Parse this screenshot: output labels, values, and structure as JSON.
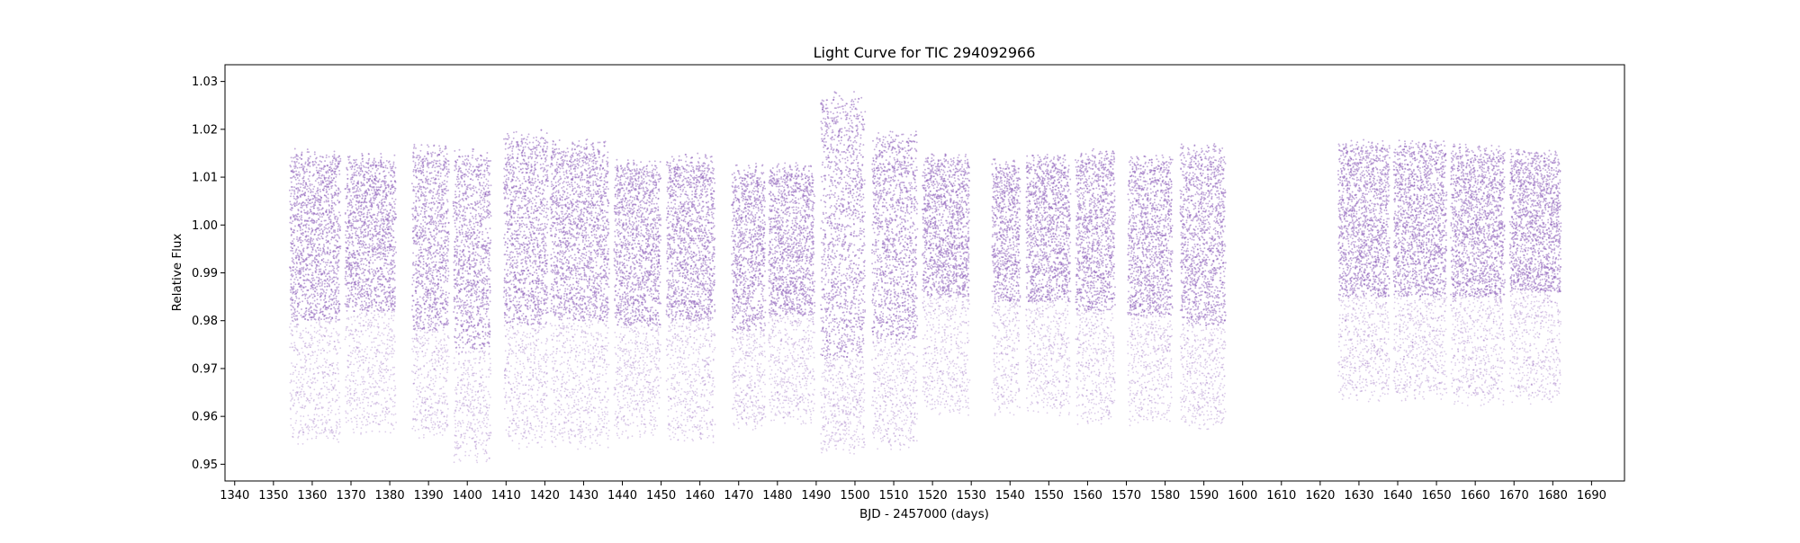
{
  "chart_data": {
    "type": "scatter",
    "title": "Light Curve for TIC 294092966",
    "xlabel": "BJD - 2457000 (days)",
    "ylabel": "Relative Flux",
    "xlim": [
      1337.5,
      1698.5
    ],
    "ylim": [
      0.9465,
      1.0335
    ],
    "xticks": [
      1340,
      1350,
      1360,
      1370,
      1380,
      1390,
      1400,
      1410,
      1420,
      1430,
      1440,
      1450,
      1460,
      1470,
      1480,
      1490,
      1500,
      1510,
      1520,
      1530,
      1540,
      1550,
      1560,
      1570,
      1580,
      1590,
      1600,
      1610,
      1620,
      1630,
      1640,
      1650,
      1660,
      1670,
      1680,
      1690
    ],
    "yticks": [
      0.95,
      0.96,
      0.97,
      0.98,
      0.99,
      1.0,
      1.01,
      1.02,
      1.03
    ],
    "ytick_labels": [
      "0.95",
      "0.96",
      "0.97",
      "0.98",
      "0.99",
      "1.00",
      "1.01",
      "1.02",
      "1.03"
    ],
    "grid": false,
    "marker_color": "#9467bd",
    "segments": [
      {
        "x_start": 1354.3,
        "x_end": 1367.2,
        "flux_min": 0.954,
        "flux_max": 1.016,
        "dense_low": 0.98
      },
      {
        "x_start": 1368.6,
        "x_end": 1381.5,
        "flux_min": 0.956,
        "flux_max": 1.015,
        "dense_low": 0.982
      },
      {
        "x_start": 1385.9,
        "x_end": 1395.2,
        "flux_min": 0.955,
        "flux_max": 1.017,
        "dense_low": 0.978
      },
      {
        "x_start": 1396.5,
        "x_end": 1406.0,
        "flux_min": 0.95,
        "flux_max": 1.016,
        "dense_low": 0.974
      },
      {
        "x_start": 1409.5,
        "x_end": 1420.8,
        "flux_min": 0.953,
        "flux_max": 1.02,
        "dense_low": 0.979
      },
      {
        "x_start": 1421.5,
        "x_end": 1436.5,
        "flux_min": 0.953,
        "flux_max": 1.018,
        "dense_low": 0.98
      },
      {
        "x_start": 1438.0,
        "x_end": 1449.8,
        "flux_min": 0.955,
        "flux_max": 1.014,
        "dense_low": 0.979
      },
      {
        "x_start": 1451.5,
        "x_end": 1463.8,
        "flux_min": 0.954,
        "flux_max": 1.015,
        "dense_low": 0.98
      },
      {
        "x_start": 1468.3,
        "x_end": 1476.8,
        "flux_min": 0.957,
        "flux_max": 1.013,
        "dense_low": 0.978
      },
      {
        "x_start": 1477.8,
        "x_end": 1489.5,
        "flux_min": 0.958,
        "flux_max": 1.013,
        "dense_low": 0.981
      },
      {
        "x_start": 1491.3,
        "x_end": 1502.5,
        "flux_min": 0.952,
        "flux_max": 1.028,
        "dense_low": 0.972
      },
      {
        "x_start": 1504.5,
        "x_end": 1516.0,
        "flux_min": 0.953,
        "flux_max": 1.02,
        "dense_low": 0.976
      },
      {
        "x_start": 1517.5,
        "x_end": 1529.5,
        "flux_min": 0.96,
        "flux_max": 1.015,
        "dense_low": 0.985
      },
      {
        "x_start": 1535.5,
        "x_end": 1542.5,
        "flux_min": 0.96,
        "flux_max": 1.014,
        "dense_low": 0.984
      },
      {
        "x_start": 1544.2,
        "x_end": 1555.5,
        "flux_min": 0.96,
        "flux_max": 1.015,
        "dense_low": 0.984
      },
      {
        "x_start": 1557.0,
        "x_end": 1567.0,
        "flux_min": 0.958,
        "flux_max": 1.016,
        "dense_low": 0.982
      },
      {
        "x_start": 1570.5,
        "x_end": 1581.8,
        "flux_min": 0.958,
        "flux_max": 1.015,
        "dense_low": 0.981
      },
      {
        "x_start": 1584.0,
        "x_end": 1595.5,
        "flux_min": 0.957,
        "flux_max": 1.017,
        "dense_low": 0.979
      },
      {
        "x_start": 1624.8,
        "x_end": 1637.8,
        "flux_min": 0.963,
        "flux_max": 1.018,
        "dense_low": 0.985
      },
      {
        "x_start": 1639.0,
        "x_end": 1652.5,
        "flux_min": 0.963,
        "flux_max": 1.018,
        "dense_low": 0.985
      },
      {
        "x_start": 1653.8,
        "x_end": 1667.5,
        "flux_min": 0.962,
        "flux_max": 1.017,
        "dense_low": 0.985
      },
      {
        "x_start": 1669.0,
        "x_end": 1682.0,
        "flux_min": 0.962,
        "flux_max": 1.016,
        "dense_low": 0.986
      }
    ]
  }
}
